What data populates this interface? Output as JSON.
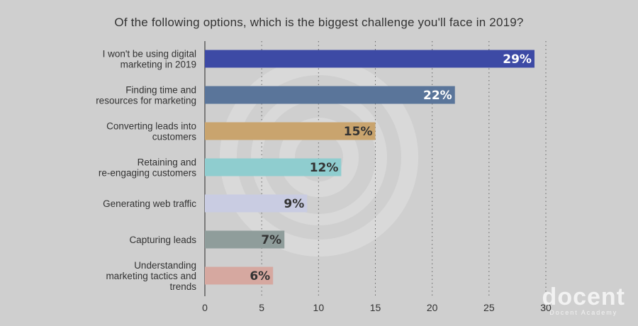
{
  "chart_data": {
    "type": "bar",
    "orientation": "horizontal",
    "title": "Of the following options, which is the biggest challenge you'll face in 2019?",
    "categories": [
      [
        "I won't be using digital",
        "marketing in 2019"
      ],
      [
        "Finding time and",
        "resources for marketing"
      ],
      [
        "Converting leads into",
        "customers"
      ],
      [
        "Retaining and",
        "re-engaging customers"
      ],
      [
        "Generating web traffic"
      ],
      [
        "Capturing leads"
      ],
      [
        "Understanding",
        "marketing tactics and",
        "trends"
      ]
    ],
    "values": [
      29,
      22,
      15,
      12,
      9,
      7,
      6
    ],
    "data_labels": [
      "29%",
      "22%",
      "15%",
      "12%",
      "9%",
      "7%",
      "6%"
    ],
    "colors": [
      "#3d4aa5",
      "#5a759a",
      "#c9a46e",
      "#8fcdcf",
      "#c9cce2",
      "#8f9d9b",
      "#d6a8a0"
    ],
    "label_colors": [
      "#ffffff",
      "#ffffff",
      "#333333",
      "#333333",
      "#333333",
      "#333333",
      "#333333"
    ],
    "xlim": [
      0,
      30
    ],
    "xticks": [
      0,
      5,
      10,
      15,
      20,
      25,
      30
    ],
    "grid": "vertical dotted"
  },
  "brand": {
    "name": "docent",
    "subtitle": "Docent Academy"
  }
}
